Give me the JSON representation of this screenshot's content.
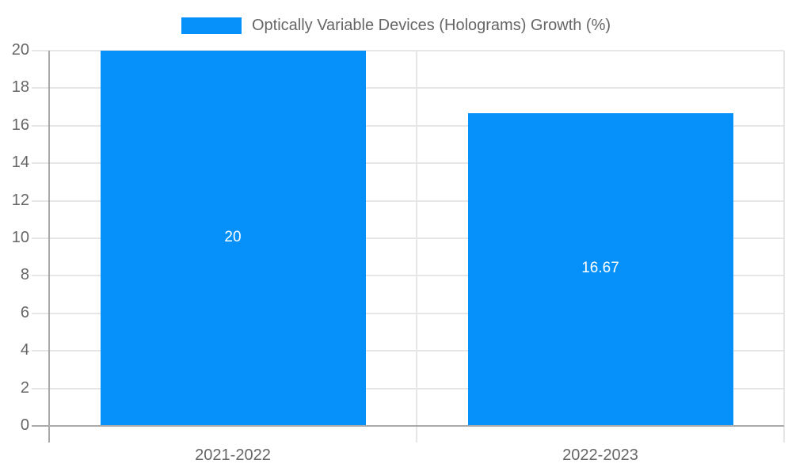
{
  "chart_data": {
    "type": "bar",
    "title": "",
    "legend_label": "Optically Variable Devices (Holograms) Growth (%)",
    "legend_position": "top",
    "categories": [
      "2021-2022",
      "2022-2023"
    ],
    "values": [
      20,
      16.67
    ],
    "value_labels": [
      "20",
      "16.67"
    ],
    "y_ticks": [
      0,
      2,
      4,
      6,
      8,
      10,
      12,
      14,
      16,
      18,
      20
    ],
    "ylim": [
      0,
      20
    ],
    "xlabel": "",
    "ylabel": "",
    "grid": true,
    "colors": {
      "bar": "#0590fa",
      "bar_label": "#ffffff",
      "axis_text": "#666666",
      "gridline": "#e6e6e6",
      "axis_line": "#aaaaaa",
      "background": "#ffffff"
    }
  }
}
